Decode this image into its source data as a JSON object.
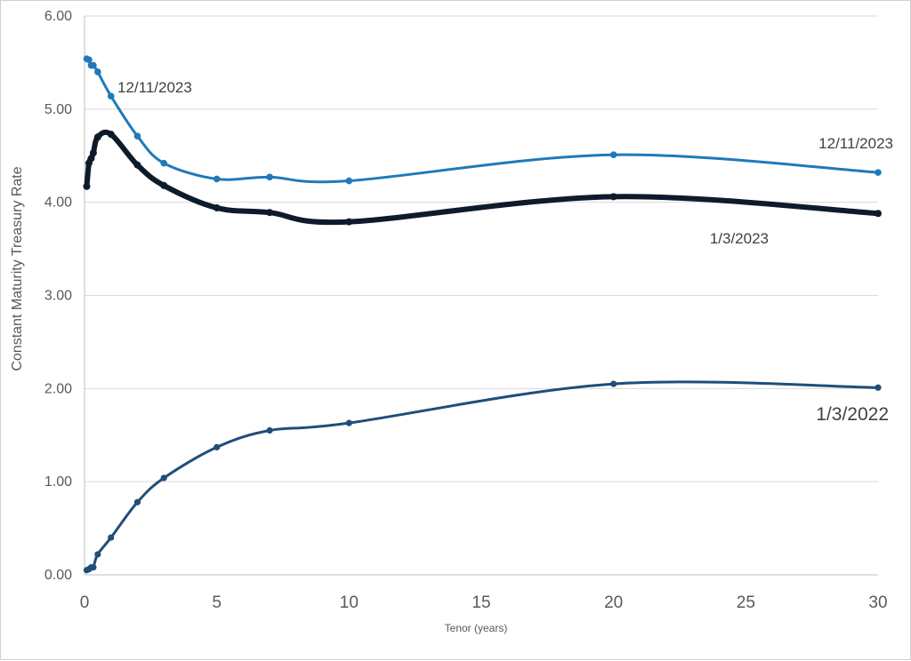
{
  "chart_data": {
    "type": "line",
    "title": "",
    "xlabel": "Tenor (years)",
    "ylabel": "Constant Maturity Treasury Rate",
    "xlim": [
      0,
      30
    ],
    "ylim": [
      0,
      6
    ],
    "x_ticks": [
      "0",
      "5",
      "10",
      "15",
      "20",
      "25",
      "30"
    ],
    "y_ticks": [
      "0.00",
      "1.00",
      "2.00",
      "3.00",
      "4.00",
      "5.00",
      "6.00"
    ],
    "grid": "horizontal",
    "x": [
      0.0833,
      0.1667,
      0.25,
      0.3333,
      0.5,
      1,
      2,
      3,
      5,
      7,
      10,
      20,
      30
    ],
    "series": [
      {
        "name": "12/11/2023",
        "color": "#1f7ab8",
        "values": [
          5.54,
          5.53,
          5.47,
          5.47,
          5.4,
          5.14,
          4.71,
          4.42,
          4.25,
          4.27,
          4.23,
          4.51,
          4.32
        ]
      },
      {
        "name": "1/3/2023",
        "color": "#0d1b2a",
        "values": [
          4.17,
          4.42,
          4.47,
          4.53,
          4.7,
          4.73,
          4.4,
          4.18,
          3.94,
          3.89,
          3.79,
          4.06,
          3.88
        ]
      },
      {
        "name": "1/3/2022",
        "color": "#1f4e79",
        "values": [
          0.05,
          0.06,
          0.08,
          0.08,
          0.22,
          0.4,
          0.78,
          1.04,
          1.37,
          1.55,
          1.63,
          2.05,
          2.01
        ]
      }
    ],
    "annotations": [
      {
        "text": "12/11/2023"
      },
      {
        "text": "12/11/2023"
      },
      {
        "text": "1/3/2023"
      },
      {
        "text": "1/3/2022"
      }
    ]
  }
}
